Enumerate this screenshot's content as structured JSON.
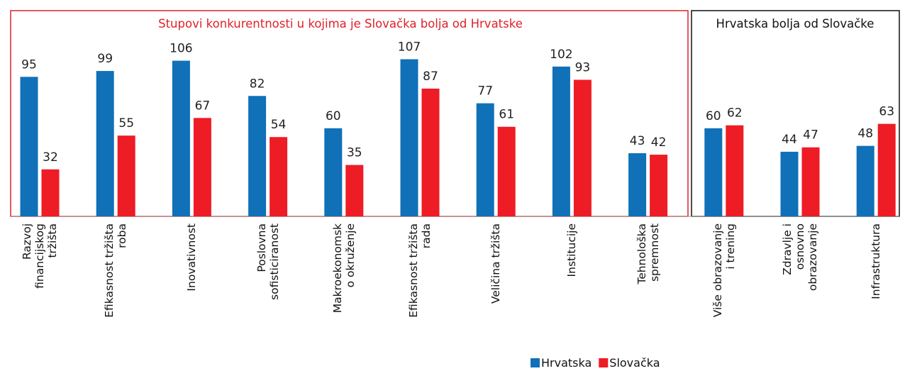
{
  "chart_data": {
    "type": "bar",
    "annotations": [
      "Stupovi konkurentnosti u kojima je Slovačka bolja od Hrvatske",
      "Hrvatska bolja od Slovačke"
    ],
    "categories": [
      "Razvoj\nfinancijskog\ntržišta",
      "Efikasnost tržišta\nroba",
      "Inovativnost",
      "Poslovna\nsofisticiranost",
      "Makroekonomsk\no okruženje",
      "Efikasnost tržišta\nrada",
      "Veličina tržišta",
      "Institucije",
      "Tehnološka\nspremnost",
      "Više obrazovanje\ni trening",
      "Zdravlje i\nosnovno\nobrazovanje",
      "Infrastruktura"
    ],
    "series": [
      {
        "name": "Hrvatska",
        "color": "#1070b8",
        "values": [
          95,
          99,
          106,
          82,
          60,
          107,
          77,
          102,
          43,
          60,
          44,
          48
        ]
      },
      {
        "name": "Slovačka",
        "color": "#ee1c25",
        "values": [
          32,
          55,
          67,
          54,
          35,
          87,
          61,
          93,
          42,
          62,
          47,
          63
        ]
      }
    ],
    "legend": "bottom"
  }
}
